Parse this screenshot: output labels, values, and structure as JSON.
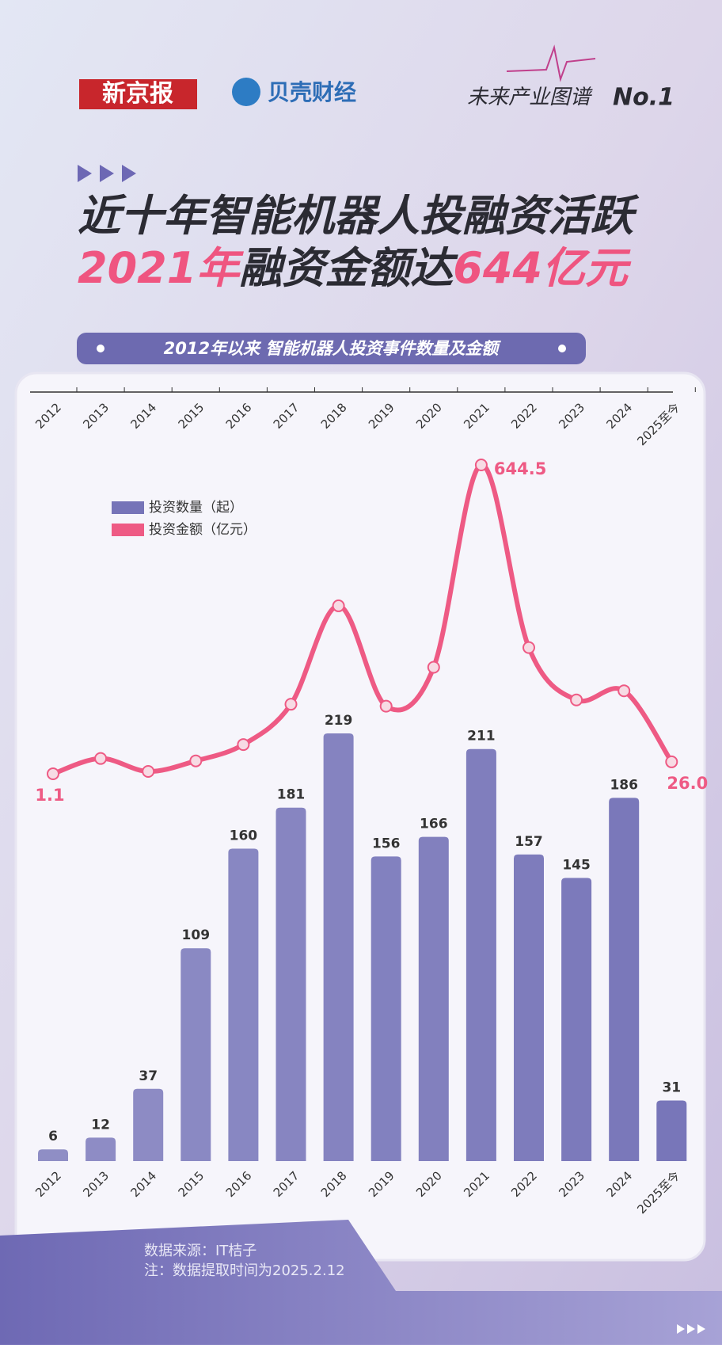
{
  "header": {
    "brand1": "新京报",
    "brand2": "贝壳财经",
    "series_title": "未来产业图谱",
    "series_no": "No.1"
  },
  "title_line1": [
    {
      "text": "近十年智能机器人投融资活跃",
      "color": "#2b2b33"
    }
  ],
  "title_line2": [
    {
      "text": "2021年",
      "color": "#ef5580"
    },
    {
      "text": "融资金额达",
      "color": "#2b2b33"
    },
    {
      "text": "644亿元",
      "color": "#ef5580"
    }
  ],
  "chart_data": {
    "type": "bar+line",
    "subtitle": "2012年以来 智能机器人投资事件数量及金额",
    "categories": [
      "2012",
      "2013",
      "2014",
      "2015",
      "2016",
      "2017",
      "2018",
      "2019",
      "2020",
      "2021",
      "2022",
      "2023",
      "2024",
      "2025至今"
    ],
    "series": [
      {
        "name": "投资数量（起）",
        "type": "bar",
        "color": "#7674b8",
        "values": [
          6,
          12,
          37,
          109,
          160,
          181,
          219,
          156,
          166,
          211,
          157,
          145,
          186,
          31
        ]
      },
      {
        "name": "投资金额（亿元）",
        "type": "line",
        "color": "#ee5a84",
        "values": [
          1.1,
          33,
          6,
          28,
          62,
          146,
          351,
          142,
          223,
          644.5,
          264,
          155,
          174,
          26
        ],
        "value_labels": [
          "1.1",
          null,
          null,
          null,
          null,
          null,
          null,
          null,
          null,
          "644.5",
          null,
          null,
          null,
          "26.0"
        ]
      }
    ],
    "legend": "top-left"
  },
  "footer": {
    "source": "数据来源：IT桔子",
    "note": "注：数据提取时间为2025.2.12"
  }
}
